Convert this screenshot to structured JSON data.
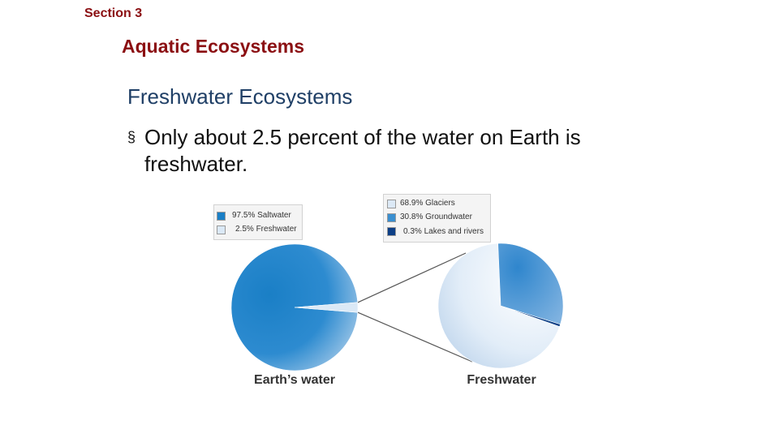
{
  "slide": {
    "section": "Section 3",
    "title": "Aquatic Ecosystems",
    "subtitle": "Freshwater Ecosystems",
    "bullet_mark": "§",
    "bullet_text": "Only about 2.5 percent of the water on Earth is freshwater."
  },
  "chart_data": [
    {
      "type": "pie",
      "title": "Earth’s water",
      "slices": [
        {
          "label": "97.5% Saltwater",
          "value": 97.5,
          "color": "#1a7fc6"
        },
        {
          "label": "2.5% Freshwater",
          "value": 2.5,
          "color": "#dbe9f6"
        }
      ]
    },
    {
      "type": "pie",
      "title": "Freshwater",
      "slices": [
        {
          "label": "68.9% Glaciers",
          "value": 68.9,
          "color": "#dce9f6"
        },
        {
          "label": "30.8% Groundwater",
          "value": 30.8,
          "color": "#3a8fd0"
        },
        {
          "label": "0.3% Lakes and rivers",
          "value": 0.3,
          "color": "#0d3f86"
        }
      ]
    }
  ]
}
